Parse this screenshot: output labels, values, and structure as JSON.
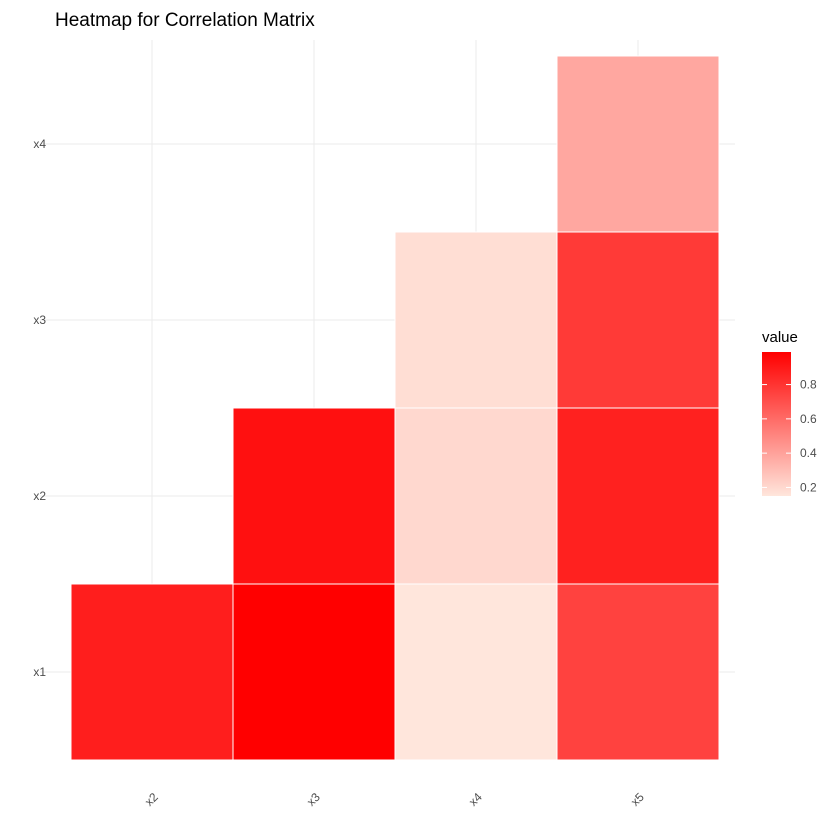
{
  "chart_data": {
    "type": "heatmap",
    "title": "Heatmap for Correlation Matrix",
    "xlabel": "",
    "ylabel": "",
    "x_categories": [
      "x2",
      "x3",
      "x4",
      "x5"
    ],
    "y_categories": [
      "x1",
      "x2",
      "x3",
      "x4"
    ],
    "cells": [
      {
        "x": "x2",
        "y": "x1",
        "value": 0.88
      },
      {
        "x": "x3",
        "y": "x1",
        "value": 0.99
      },
      {
        "x": "x4",
        "y": "x1",
        "value": 0.15
      },
      {
        "x": "x5",
        "y": "x1",
        "value": 0.75
      },
      {
        "x": "x3",
        "y": "x2",
        "value": 0.93
      },
      {
        "x": "x4",
        "y": "x2",
        "value": 0.2
      },
      {
        "x": "x5",
        "y": "x2",
        "value": 0.87
      },
      {
        "x": "x4",
        "y": "x3",
        "value": 0.18
      },
      {
        "x": "x5",
        "y": "x3",
        "value": 0.78
      },
      {
        "x": "x5",
        "y": "x4",
        "value": 0.38
      }
    ],
    "legend": {
      "title": "value",
      "ticks": [
        0.2,
        0.4,
        0.6,
        0.8
      ],
      "tick_labels": [
        "0.2",
        "0.4",
        "0.6",
        "0.8"
      ],
      "range": [
        0.15,
        0.99
      ],
      "placement": "right"
    },
    "colors": {
      "low": "#ffe6dc",
      "high": "#ff0000",
      "grid": "#ebebeb",
      "tile_border": "#ffffff"
    },
    "grid": true
  }
}
